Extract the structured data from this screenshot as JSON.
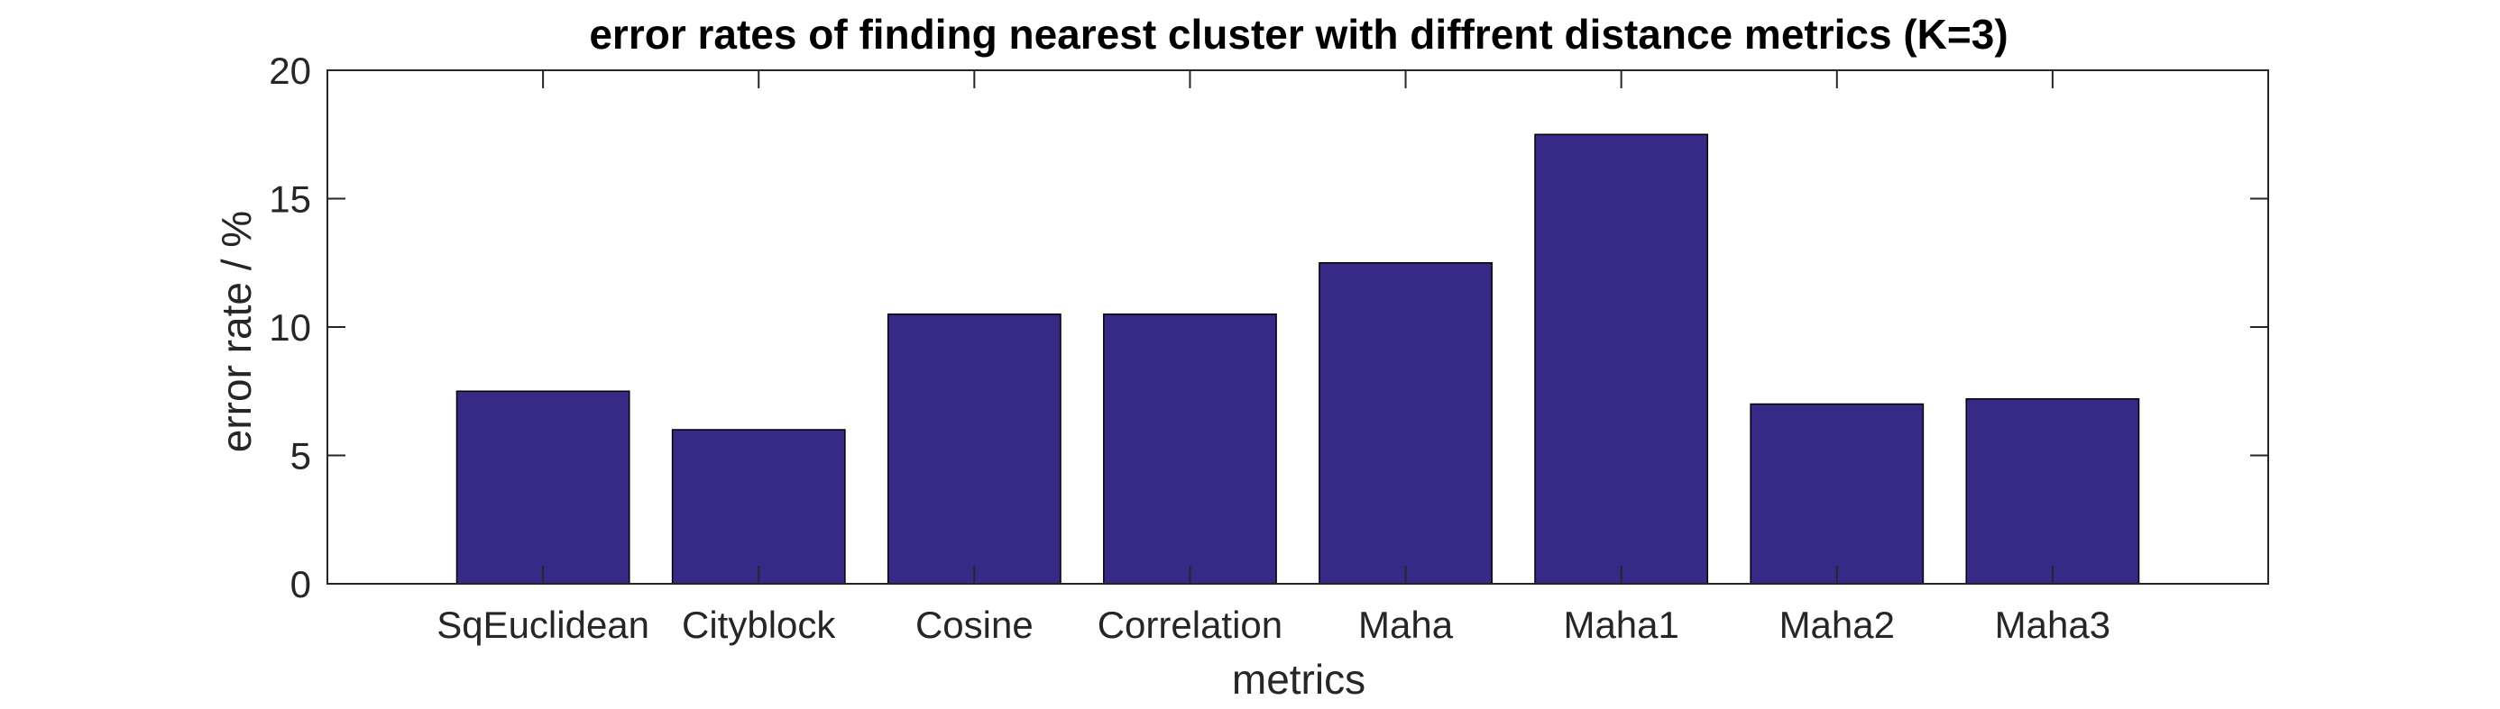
{
  "chart_data": {
    "type": "bar",
    "title": "error rates of finding nearest cluster with diffrent distance metrics (K=3)",
    "xlabel": "metrics",
    "ylabel": "error rate / %",
    "categories": [
      "SqEuclidean",
      "Cityblock",
      "Cosine",
      "Correlation",
      "Maha",
      "Maha1",
      "Maha2",
      "Maha3"
    ],
    "values": [
      7.5,
      6.0,
      10.5,
      10.5,
      12.5,
      17.5,
      7.0,
      7.2
    ],
    "ylim": [
      0,
      20
    ],
    "yticks": [
      0,
      5,
      10,
      15,
      20
    ],
    "grid": false,
    "legend": "none",
    "colors": {
      "bar": "#372a87",
      "bar_edge": "#000000",
      "axes": "#262626"
    }
  }
}
